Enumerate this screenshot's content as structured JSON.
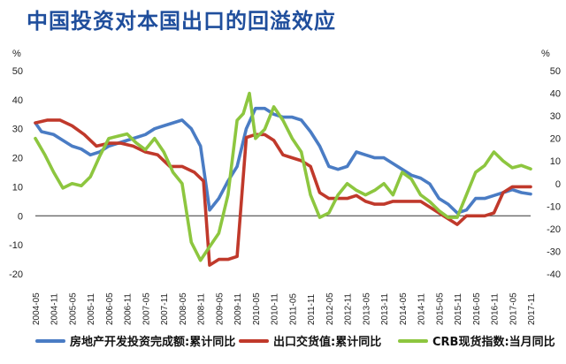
{
  "chart_data": {
    "type": "line",
    "title": "中国投资对本国出口的回溢效应",
    "y_unit_left": "%",
    "y_unit_right": "%",
    "ylim_left": [
      -20,
      50
    ],
    "ylim_right": [
      -40,
      50
    ],
    "y_ticks_left": [
      "-20",
      "-10",
      "0",
      "10",
      "20",
      "30",
      "40",
      "50"
    ],
    "y_ticks_right": [
      "-40",
      "-30",
      "-20",
      "-10",
      "0",
      "10",
      "20",
      "30",
      "40",
      "50"
    ],
    "x_ticks": [
      "2004-05",
      "2004-11",
      "2005-05",
      "2005-11",
      "2006-05",
      "2006-11",
      "2007-05",
      "2007-11",
      "2008-05",
      "2008-11",
      "2009-05",
      "2009-11",
      "2010-05",
      "2010-11",
      "2011-05",
      "2011-11",
      "2012-05",
      "2012-11",
      "2013-05",
      "2013-11",
      "2014-05",
      "2014-11",
      "2015-05",
      "2015-11",
      "2016-05",
      "2016-11",
      "2017-05",
      "2017-11"
    ],
    "legend_position": "bottom",
    "grid": false,
    "series": [
      {
        "name": "房地产开发投资完成额:累计同比",
        "axis": "left",
        "color": "#4a7cc4",
        "x": [
          "2004-05",
          "2004-07",
          "2004-11",
          "2005-02",
          "2005-05",
          "2005-08",
          "2005-11",
          "2006-02",
          "2006-05",
          "2006-08",
          "2006-11",
          "2007-02",
          "2007-05",
          "2007-08",
          "2007-11",
          "2008-02",
          "2008-05",
          "2008-08",
          "2008-11",
          "2009-02",
          "2009-05",
          "2009-08",
          "2009-11",
          "2010-02",
          "2010-05",
          "2010-08",
          "2010-11",
          "2011-02",
          "2011-05",
          "2011-08",
          "2011-11",
          "2012-02",
          "2012-05",
          "2012-08",
          "2012-11",
          "2013-02",
          "2013-05",
          "2013-08",
          "2013-11",
          "2014-02",
          "2014-05",
          "2014-08",
          "2014-11",
          "2015-02",
          "2015-05",
          "2015-08",
          "2015-11",
          "2016-02",
          "2016-05",
          "2016-08",
          "2016-11",
          "2017-02",
          "2017-05",
          "2017-08",
          "2017-11"
        ],
        "y": [
          32,
          29,
          28,
          26,
          24,
          23,
          21,
          22,
          24,
          25,
          26,
          27,
          28,
          30,
          31,
          32,
          33,
          30,
          24,
          2,
          6,
          12,
          17,
          30,
          37,
          37,
          35,
          34,
          34,
          33,
          29,
          24,
          17,
          16,
          17,
          22,
          21,
          20,
          20,
          18,
          16,
          14,
          13,
          11,
          6,
          4,
          1,
          2,
          6,
          6,
          7,
          8,
          9,
          8,
          7.5
        ]
      },
      {
        "name": "出口交货值:累计同比",
        "axis": "left",
        "color": "#c0392b",
        "x": [
          "2004-05",
          "2004-09",
          "2005-01",
          "2005-05",
          "2005-09",
          "2006-01",
          "2006-05",
          "2006-09",
          "2007-01",
          "2007-05",
          "2007-09",
          "2008-01",
          "2008-05",
          "2008-09",
          "2008-12",
          "2009-02",
          "2009-05",
          "2009-08",
          "2009-11",
          "2010-02",
          "2010-05",
          "2010-08",
          "2010-11",
          "2011-02",
          "2011-05",
          "2011-08",
          "2011-11",
          "2012-02",
          "2012-05",
          "2012-08",
          "2012-11",
          "2013-02",
          "2013-05",
          "2013-08",
          "2013-11",
          "2014-02",
          "2014-05",
          "2014-08",
          "2014-11",
          "2015-02",
          "2015-05",
          "2015-08",
          "2015-11",
          "2016-02",
          "2016-05",
          "2016-08",
          "2016-11",
          "2017-02",
          "2017-05",
          "2017-08",
          "2017-11"
        ],
        "y": [
          32,
          33,
          33,
          31,
          28,
          24,
          25,
          25,
          24,
          22,
          21,
          17,
          17,
          15,
          12,
          -17,
          -15,
          -15,
          -14,
          27,
          28,
          28,
          26,
          21,
          20,
          19,
          17,
          8,
          6,
          6,
          6,
          7,
          5,
          4,
          4,
          5,
          5,
          5,
          5,
          3,
          1,
          -1,
          -3,
          0,
          0,
          0,
          1,
          8,
          10,
          10,
          10
        ]
      },
      {
        "name": "CRB现货指数:当月同比",
        "axis": "right",
        "color": "#8dc63f",
        "x": [
          "2004-05",
          "2004-08",
          "2004-11",
          "2005-02",
          "2005-05",
          "2005-08",
          "2005-11",
          "2006-02",
          "2006-05",
          "2006-08",
          "2006-11",
          "2007-02",
          "2007-05",
          "2007-08",
          "2007-11",
          "2008-02",
          "2008-05",
          "2008-08",
          "2008-11",
          "2009-02",
          "2009-05",
          "2009-08",
          "2009-11",
          "2010-01",
          "2010-03",
          "2010-05",
          "2010-08",
          "2010-11",
          "2011-02",
          "2011-05",
          "2011-08",
          "2011-11",
          "2012-02",
          "2012-05",
          "2012-08",
          "2012-11",
          "2013-02",
          "2013-05",
          "2013-08",
          "2013-11",
          "2014-02",
          "2014-05",
          "2014-08",
          "2014-11",
          "2015-02",
          "2015-05",
          "2015-08",
          "2015-11",
          "2016-02",
          "2016-05",
          "2016-08",
          "2016-11",
          "2017-02",
          "2017-05",
          "2017-08",
          "2017-11"
        ],
        "y": [
          20,
          13,
          5,
          -2,
          0,
          -1,
          3,
          12,
          20,
          21,
          22,
          18,
          15,
          20,
          14,
          5,
          0,
          -26,
          -34,
          -28,
          -22,
          -5,
          28,
          31,
          40,
          20,
          24,
          34,
          28,
          20,
          14,
          -5,
          -15,
          -13,
          -5,
          0,
          -3,
          -5,
          -3,
          0,
          -5,
          5,
          2,
          -5,
          -8,
          -12,
          -15,
          -15,
          -5,
          5,
          8,
          14,
          10,
          7,
          8,
          6.5
        ]
      }
    ]
  }
}
